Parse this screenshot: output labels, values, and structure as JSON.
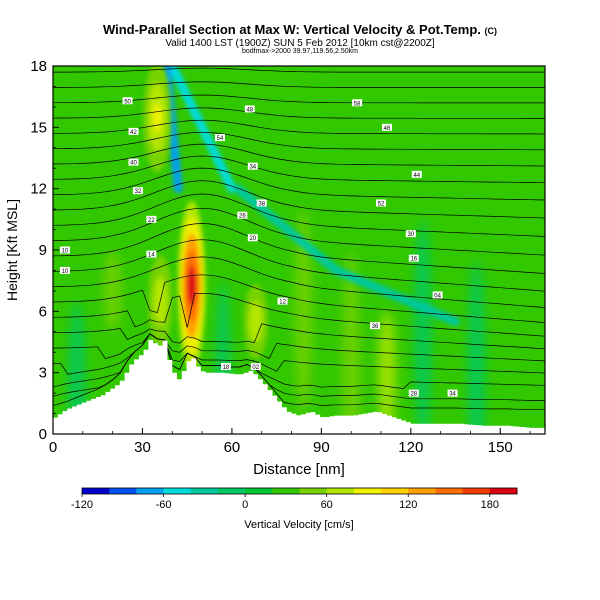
{
  "header": {
    "title": "Wind-Parallel Section at Max W: Vertical Velocity & Pot.Temp.",
    "title_tag": "(C)",
    "subtitle": "Valid 1400 LST (1900Z) SUN 5 Feb 2012 [10km cst@2200Z]",
    "info_line": "bodfmax->2000 39.97,119.56,2.50km"
  },
  "chart_data": {
    "type": "heatmap",
    "title": "Wind-Parallel Section at Max W: Vertical Velocity & Pot.Temp.",
    "xlabel": "Distance [nm]",
    "ylabel": "Height [Kft MSL]",
    "xlim": [
      0,
      165
    ],
    "ylim": [
      0,
      18
    ],
    "x_ticks": [
      0,
      30,
      60,
      90,
      120,
      150
    ],
    "y_ticks": [
      0,
      3,
      6,
      9,
      12,
      15,
      18
    ],
    "x_tick_labels": [
      "0",
      "30",
      "60",
      "90",
      "120",
      "150"
    ],
    "y_tick_labels": [
      "0",
      "3",
      "6",
      "9",
      "12",
      "15",
      "18"
    ],
    "colorbar": {
      "label": "Vertical Velocity [cm/s]",
      "min": -120,
      "max": 200,
      "ticks": [
        -120,
        -60,
        0,
        60,
        120,
        180
      ],
      "tick_labels": [
        "-120",
        "-60",
        "0",
        "60",
        "120",
        "180"
      ],
      "colors": [
        "#0000cc",
        "#0050f0",
        "#00a0f0",
        "#00dcdc",
        "#00c8a0",
        "#00c864",
        "#00c832",
        "#32c800",
        "#78d200",
        "#b4e600",
        "#f0f000",
        "#ffd200",
        "#ffa000",
        "#ff6e00",
        "#f03c00",
        "#dc0014"
      ]
    },
    "updrafts": [
      {
        "x": 36,
        "z_bottom": 4,
        "z_top": 9,
        "w": 70
      },
      {
        "x": 46.5,
        "z_bottom": 3.3,
        "z_top": 11.2,
        "w": 180
      },
      {
        "x": 68,
        "z_bottom": 3.5,
        "z_top": 7.5,
        "w": 70
      },
      {
        "x": 35,
        "z_bottom": 13,
        "z_top": 18,
        "w": 80
      }
    ],
    "terrain_profile": {
      "x": [
        0,
        4,
        9,
        16,
        22,
        26,
        30,
        32,
        35,
        37,
        39,
        42,
        44,
        46,
        48,
        50,
        56,
        62,
        66,
        70,
        74,
        78,
        82,
        86,
        90,
        94,
        100,
        104,
        108,
        114,
        120,
        128,
        136,
        144,
        152,
        160,
        165
      ],
      "z": [
        0.8,
        1.2,
        1.5,
        1.9,
        2.5,
        3.5,
        4.0,
        4.6,
        4.3,
        4.6,
        3.2,
        2.6,
        3.4,
        3.8,
        3.3,
        3.0,
        3.0,
        2.9,
        3.1,
        2.5,
        1.8,
        1.1,
        0.9,
        1.1,
        0.8,
        0.9,
        0.9,
        1.0,
        1.1,
        0.8,
        0.5,
        0.5,
        0.5,
        0.4,
        0.4,
        0.3,
        0.3
      ]
    },
    "theta_labels": [
      {
        "x": 25,
        "z": 16.3,
        "text": "50"
      },
      {
        "x": 27,
        "z": 14.8,
        "text": "42"
      },
      {
        "x": 27,
        "z": 13.3,
        "text": "40"
      },
      {
        "x": 28.5,
        "z": 11.9,
        "text": "32"
      },
      {
        "x": 33,
        "z": 10.5,
        "text": "22"
      },
      {
        "x": 33,
        "z": 8.8,
        "text": "14"
      },
      {
        "x": 4,
        "z": 9.0,
        "text": "10"
      },
      {
        "x": 4,
        "z": 8.0,
        "text": "10"
      },
      {
        "x": 56,
        "z": 14.5,
        "text": "54"
      },
      {
        "x": 66,
        "z": 15.9,
        "text": "48"
      },
      {
        "x": 67,
        "z": 13.1,
        "text": "34"
      },
      {
        "x": 63.5,
        "z": 10.7,
        "text": "26"
      },
      {
        "x": 70,
        "z": 11.3,
        "text": "38"
      },
      {
        "x": 67,
        "z": 9.6,
        "text": "20"
      },
      {
        "x": 77,
        "z": 6.5,
        "text": "12"
      },
      {
        "x": 58,
        "z": 3.3,
        "text": "18"
      },
      {
        "x": 68,
        "z": 3.3,
        "text": "02"
      },
      {
        "x": 102,
        "z": 16.2,
        "text": "58"
      },
      {
        "x": 112,
        "z": 15.0,
        "text": "46"
      },
      {
        "x": 122,
        "z": 12.7,
        "text": "44"
      },
      {
        "x": 110,
        "z": 11.3,
        "text": "52"
      },
      {
        "x": 120,
        "z": 9.8,
        "text": "30"
      },
      {
        "x": 121,
        "z": 8.6,
        "text": "16"
      },
      {
        "x": 129,
        "z": 6.8,
        "text": "04"
      },
      {
        "x": 108,
        "z": 5.3,
        "text": "36"
      },
      {
        "x": 121,
        "z": 2.0,
        "text": "28"
      },
      {
        "x": 134,
        "z": 2.0,
        "text": "34"
      }
    ]
  }
}
